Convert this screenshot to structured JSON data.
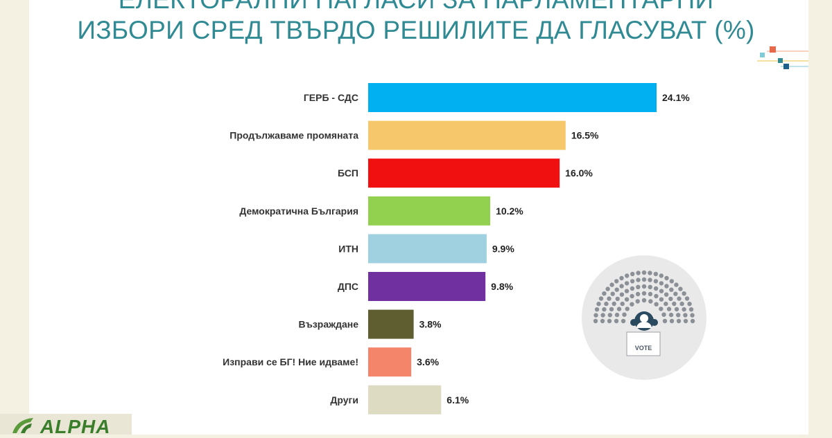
{
  "title_lines": [
    "ЕЛЕКТОРАЛНИ НАГЛАСИ ЗА ПАРЛАМЕНТАРНИ",
    "ИЗБОРИ СРЕД ТВЪРДО РЕШИЛИТЕ ДА ГЛАСУВАТ (%)"
  ],
  "logo_text": "ALPHA",
  "vote_text": "VOTE",
  "chart_data": {
    "type": "bar",
    "orientation": "horizontal",
    "title": "ЕЛЕКТОРАЛНИ НАГЛАСИ ЗА ПАРЛАМЕНТАРНИ ИЗБОРИ СРЕД ТВЪРДО РЕШИЛИТЕ ДА ГЛАСУВАТ (%)",
    "categories": [
      "ГЕРБ - СДС",
      "Продължаваме промяната",
      "БСП",
      "Демократична България",
      "ИТН",
      "ДПС",
      "Възраждане",
      "Изправи се БГ! Ние идваме!",
      "Други"
    ],
    "values": [
      24.1,
      16.5,
      16.0,
      10.2,
      9.9,
      9.8,
      3.8,
      3.6,
      6.1
    ],
    "value_labels": [
      "24.1%",
      "16.5%",
      "16.0%",
      "10.2%",
      "9.9%",
      "9.8%",
      "3.8%",
      "3.6%",
      "6.1%"
    ],
    "colors": [
      "#00b0f0",
      "#f6c86b",
      "#f01010",
      "#92d050",
      "#9fd1e0",
      "#7030a0",
      "#5e5e30",
      "#f4846a",
      "#dddcc2"
    ],
    "xlim": [
      0,
      24.1
    ],
    "grid": false,
    "legend": "none"
  }
}
